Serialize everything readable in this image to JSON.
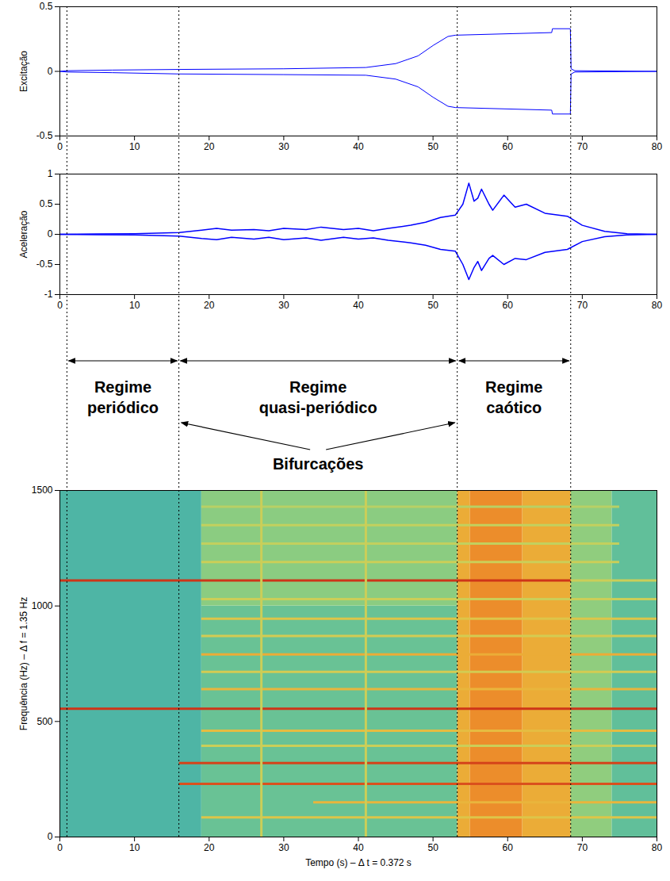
{
  "chart_data": [
    {
      "type": "line",
      "ylabel": "Excitação",
      "x": [
        0,
        1,
        7,
        16,
        30,
        41,
        45,
        48,
        50,
        52,
        53,
        65.9,
        66,
        68.4,
        68.5,
        69,
        80
      ],
      "series": [
        {
          "color": "#0000ff",
          "values": [
            0,
            0.005,
            0.01,
            0.015,
            0.02,
            0.03,
            0.06,
            0.12,
            0.2,
            0.27,
            0.28,
            0.3,
            0.33,
            0.33,
            0.02,
            0.005,
            0
          ]
        },
        {
          "color": "#0000ff",
          "values": [
            0,
            -0.005,
            -0.01,
            -0.02,
            -0.025,
            -0.03,
            -0.06,
            -0.12,
            -0.2,
            -0.27,
            -0.28,
            -0.3,
            -0.33,
            -0.33,
            -0.02,
            -0.005,
            0
          ]
        }
      ],
      "xlim": [
        0,
        80
      ],
      "xticks": [
        0,
        10,
        20,
        30,
        40,
        50,
        60,
        70,
        80
      ],
      "ylim": [
        -0.5,
        0.5
      ],
      "yticks": [
        -0.5,
        0,
        0.5
      ]
    },
    {
      "type": "line",
      "ylabel": "Aceleração",
      "x": [
        0,
        5,
        10,
        16,
        19,
        21,
        23,
        26,
        28,
        30,
        33,
        35,
        38,
        40,
        42,
        44,
        47,
        49,
        51,
        53,
        54,
        54.8,
        55.5,
        56,
        56.5,
        57.5,
        58,
        59.5,
        61,
        62.5,
        65,
        68,
        70,
        73,
        76,
        80
      ],
      "series": [
        {
          "color": "#0000ff",
          "values": [
            0,
            0.005,
            0.01,
            0.03,
            0.07,
            0.1,
            0.07,
            0.08,
            0.06,
            0.1,
            0.08,
            0.12,
            0.08,
            0.1,
            0.06,
            0.1,
            0.15,
            0.2,
            0.28,
            0.32,
            0.5,
            0.85,
            0.55,
            0.6,
            0.75,
            0.5,
            0.4,
            0.65,
            0.45,
            0.5,
            0.35,
            0.3,
            0.15,
            0.05,
            0.01,
            0
          ]
        },
        {
          "color": "#0000ff",
          "values": [
            0,
            -0.005,
            -0.01,
            -0.03,
            -0.07,
            -0.09,
            -0.05,
            -0.08,
            -0.05,
            -0.09,
            -0.06,
            -0.1,
            -0.05,
            -0.08,
            -0.06,
            -0.1,
            -0.14,
            -0.18,
            -0.25,
            -0.28,
            -0.5,
            -0.75,
            -0.55,
            -0.45,
            -0.6,
            -0.4,
            -0.35,
            -0.5,
            -0.4,
            -0.42,
            -0.3,
            -0.25,
            -0.12,
            -0.04,
            -0.01,
            0
          ]
        }
      ],
      "xlim": [
        0,
        80
      ],
      "xticks": [
        0,
        10,
        20,
        30,
        40,
        50,
        60,
        70,
        80
      ],
      "ylim": [
        -1,
        1
      ],
      "yticks": [
        -1,
        -0.5,
        0,
        0.5,
        1
      ]
    },
    {
      "type": "heatmap",
      "xlabel": "Tempo (s) – Δ t = 0.372 s",
      "ylabel": "Frequência (Hz) – Δ f = 1.35 Hz",
      "xlim": [
        0,
        80
      ],
      "xticks": [
        0,
        10,
        20,
        30,
        40,
        50,
        60,
        70,
        80
      ],
      "ylim": [
        0,
        1500
      ],
      "yticks": [
        0,
        500,
        1000,
        1500
      ],
      "color_range": [
        0,
        1
      ],
      "cells": [
        {
          "t0": 0,
          "t1": 19,
          "f0": 0,
          "f1": 1500,
          "level": 0.33
        },
        {
          "t0": 19,
          "t1": 53.3,
          "f0": 0,
          "f1": 1000,
          "level": 0.4
        },
        {
          "t0": 19,
          "t1": 53.3,
          "f0": 1000,
          "f1": 1500,
          "level": 0.47
        },
        {
          "t0": 53.3,
          "t1": 55,
          "f0": 0,
          "f1": 1500,
          "level": 0.72
        },
        {
          "t0": 55,
          "t1": 62,
          "f0": 0,
          "f1": 1500,
          "level": 0.78
        },
        {
          "t0": 62,
          "t1": 68.5,
          "f0": 0,
          "f1": 1500,
          "level": 0.72
        },
        {
          "t0": 68.5,
          "t1": 74,
          "f0": 0,
          "f1": 1500,
          "level": 0.48
        },
        {
          "t0": 74,
          "t1": 80,
          "f0": 0,
          "f1": 1500,
          "level": 0.38
        }
      ],
      "lines": [
        {
          "f": 1110,
          "t0": 0,
          "t1": 68.5,
          "level": 0.92
        },
        {
          "f": 1110,
          "t0": 68.5,
          "t1": 80,
          "level": 0.6
        },
        {
          "f": 555,
          "t0": 0,
          "t1": 80,
          "level": 0.92
        },
        {
          "f": 320,
          "t0": 16,
          "t1": 80,
          "level": 0.9
        },
        {
          "f": 230,
          "t0": 16,
          "t1": 80,
          "level": 0.88
        },
        {
          "f": 150,
          "t0": 34,
          "t1": 80,
          "level": 0.7
        },
        {
          "f": 85,
          "t0": 19,
          "t1": 80,
          "level": 0.65
        },
        {
          "f": 395,
          "t0": 19,
          "t1": 80,
          "level": 0.6
        },
        {
          "f": 460,
          "t0": 19,
          "t1": 80,
          "level": 0.68
        },
        {
          "f": 640,
          "t0": 19,
          "t1": 80,
          "level": 0.7
        },
        {
          "f": 715,
          "t0": 19,
          "t1": 80,
          "level": 0.62
        },
        {
          "f": 790,
          "t0": 19,
          "t1": 80,
          "level": 0.72
        },
        {
          "f": 870,
          "t0": 19,
          "t1": 80,
          "level": 0.62
        },
        {
          "f": 945,
          "t0": 19,
          "t1": 80,
          "level": 0.65
        },
        {
          "f": 1030,
          "t0": 19,
          "t1": 80,
          "level": 0.6
        },
        {
          "f": 1190,
          "t0": 19,
          "t1": 75,
          "level": 0.6
        },
        {
          "f": 1270,
          "t0": 19,
          "t1": 75,
          "level": 0.58
        },
        {
          "f": 1350,
          "t0": 19,
          "t1": 75,
          "level": 0.58
        },
        {
          "f": 1430,
          "t0": 19,
          "t1": 75,
          "level": 0.56
        }
      ],
      "vertical_lines": [
        {
          "t": 27,
          "f0": 0,
          "f1": 1500,
          "level": 0.6
        },
        {
          "t": 41,
          "f0": 0,
          "f1": 1500,
          "level": 0.6
        }
      ]
    }
  ],
  "annotations": {
    "boundaries": [
      1,
      16,
      53.3,
      68.5
    ],
    "regimes": [
      {
        "label": "Regime periódico",
        "from": 1,
        "to": 16
      },
      {
        "label": "Regime quasi-periódico",
        "from": 16,
        "to": 53.3
      },
      {
        "label": "Regime caótico",
        "from": 53.3,
        "to": 68.5
      }
    ],
    "bifurcations": {
      "label": "Bifurcações",
      "at": [
        16,
        53.3
      ]
    }
  }
}
